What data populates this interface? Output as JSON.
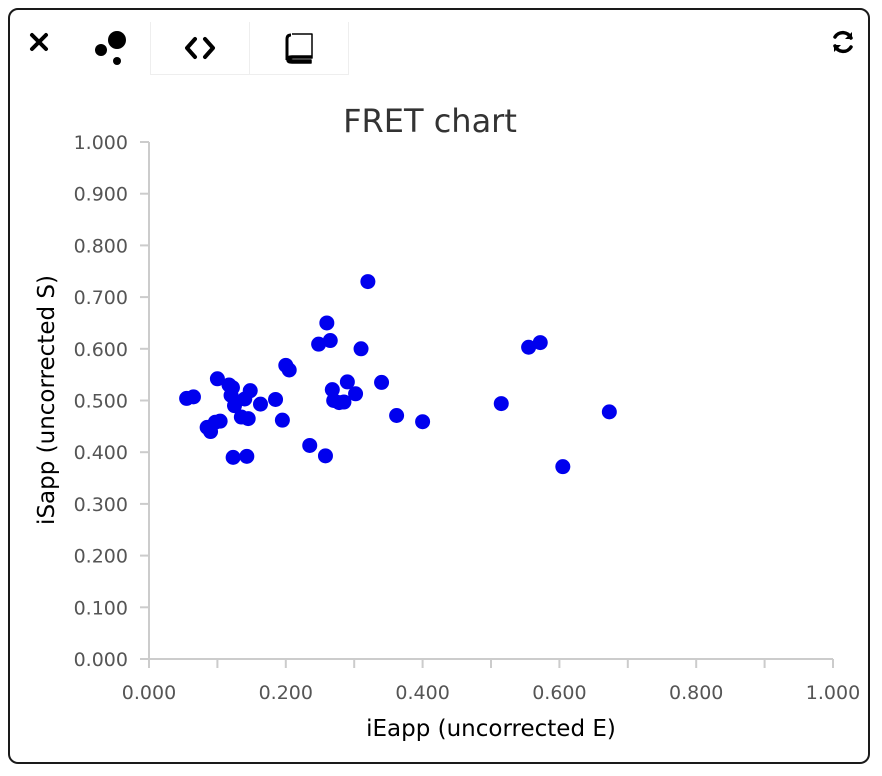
{
  "toolbar": {
    "close_icon": "close-icon",
    "scatter_icon": "scatter-chart-icon",
    "code_icon": "code-icon",
    "book_icon": "book-icon",
    "refresh_icon": "refresh-icon"
  },
  "colors": {
    "point": "#0000ee",
    "axis": "#cccccc",
    "tick_text": "#555555",
    "label_text": "#000000",
    "title_text": "#333333"
  },
  "chart_data": {
    "type": "scatter",
    "title": "FRET chart",
    "xlabel": "iEapp (uncorrected E)",
    "ylabel": "iSapp (uncorrected S)",
    "xlim": [
      0,
      1
    ],
    "ylim": [
      0,
      1
    ],
    "x_ticks": [
      "0.000",
      "0.200",
      "0.400",
      "0.600",
      "0.800",
      "1.000"
    ],
    "y_ticks": [
      "0.000",
      "0.100",
      "0.200",
      "0.300",
      "0.400",
      "0.500",
      "0.600",
      "0.700",
      "0.800",
      "0.900",
      "1.000"
    ],
    "grid": false,
    "legend": "none",
    "points": [
      [
        0.055,
        0.504
      ],
      [
        0.065,
        0.507
      ],
      [
        0.085,
        0.448
      ],
      [
        0.09,
        0.44
      ],
      [
        0.097,
        0.458
      ],
      [
        0.1,
        0.542
      ],
      [
        0.104,
        0.46
      ],
      [
        0.117,
        0.53
      ],
      [
        0.12,
        0.51
      ],
      [
        0.122,
        0.525
      ],
      [
        0.123,
        0.39
      ],
      [
        0.125,
        0.49
      ],
      [
        0.135,
        0.468
      ],
      [
        0.14,
        0.503
      ],
      [
        0.143,
        0.392
      ],
      [
        0.145,
        0.465
      ],
      [
        0.148,
        0.519
      ],
      [
        0.163,
        0.493
      ],
      [
        0.185,
        0.502
      ],
      [
        0.195,
        0.462
      ],
      [
        0.2,
        0.568
      ],
      [
        0.205,
        0.559
      ],
      [
        0.235,
        0.413
      ],
      [
        0.248,
        0.609
      ],
      [
        0.258,
        0.393
      ],
      [
        0.26,
        0.65
      ],
      [
        0.265,
        0.616
      ],
      [
        0.268,
        0.521
      ],
      [
        0.27,
        0.5
      ],
      [
        0.278,
        0.496
      ],
      [
        0.285,
        0.497
      ],
      [
        0.29,
        0.536
      ],
      [
        0.302,
        0.513
      ],
      [
        0.31,
        0.6
      ],
      [
        0.32,
        0.73
      ],
      [
        0.34,
        0.535
      ],
      [
        0.362,
        0.471
      ],
      [
        0.4,
        0.459
      ],
      [
        0.515,
        0.494
      ],
      [
        0.555,
        0.603
      ],
      [
        0.572,
        0.612
      ],
      [
        0.605,
        0.372
      ],
      [
        0.673,
        0.478
      ]
    ]
  }
}
